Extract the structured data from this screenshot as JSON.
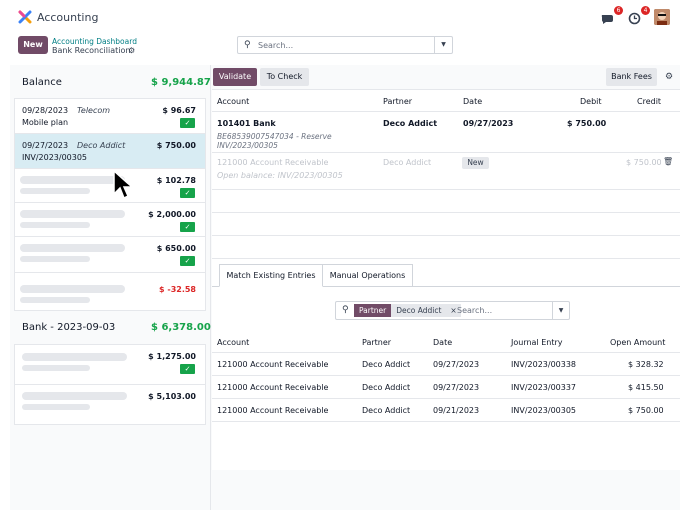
{
  "app": {
    "name": "Accounting"
  },
  "topbar": {
    "chat_badge": "6",
    "activity_badge": "4"
  },
  "control_panel": {
    "new_label": "New",
    "breadcrumb_link": "Accounting Dashboard",
    "breadcrumb_current": "Bank Reconciliation",
    "search_placeholder": "Search..."
  },
  "sidebar": {
    "balance_label": "Balance",
    "balance_amount": "$ 9,944.87",
    "transactions": [
      {
        "date": "09/28/2023",
        "partner": "Telecom",
        "label": "Mobile plan",
        "amount": "$ 96.67",
        "checked": true
      },
      {
        "date": "09/27/2023",
        "partner": "Deco Addict",
        "label": "INV/2023/00305",
        "amount": "$ 750.00",
        "checked": false
      },
      {
        "amount": "$ 102.78",
        "checked": true
      },
      {
        "amount": "$ 2,000.00",
        "checked": true
      },
      {
        "amount": "$ 650.00",
        "checked": true
      },
      {
        "amount": "$ -32.58",
        "checked": false
      }
    ],
    "bank_label": "Bank - 2023-09-03",
    "bank_amount": "$ 6,378.00",
    "bank_transactions": [
      {
        "amount": "$ 1,275.00",
        "checked": true
      },
      {
        "amount": "$ 5,103.00",
        "checked": false
      }
    ]
  },
  "toolbar": {
    "validate": "Validate",
    "to_check": "To Check",
    "bank_fees": "Bank Fees"
  },
  "entries_table": {
    "headers": {
      "account": "Account",
      "partner": "Partner",
      "date": "Date",
      "debit": "Debit",
      "credit": "Credit"
    },
    "bank_line": {
      "account": "101401 Bank",
      "ref1": "BE68539007547034 - Reserve",
      "ref2": "INV/2023/00305",
      "partner": "Deco Addict",
      "date": "09/27/2023",
      "debit": "$ 750.00"
    },
    "open_line": {
      "account": "121000 Account Receivable",
      "note": "Open balance: INV/2023/00305",
      "partner": "Deco Addict",
      "tag": "New",
      "credit": "$ 750.00"
    }
  },
  "tabs": {
    "match": "Match Existing Entries",
    "manual": "Manual Operations"
  },
  "filter": {
    "facet_key": "Partner",
    "facet_value": "Deco Addict",
    "facet_remove": "×",
    "placeholder": "Search..."
  },
  "match_table": {
    "headers": {
      "account": "Account",
      "partner": "Partner",
      "date": "Date",
      "journal_entry": "Journal Entry",
      "open_amount": "Open Amount"
    },
    "rows": [
      {
        "account": "121000 Account Receivable",
        "partner": "Deco Addict",
        "date": "09/27/2023",
        "entry": "INV/2023/00338",
        "amount": "$ 328.32"
      },
      {
        "account": "121000 Account Receivable",
        "partner": "Deco Addict",
        "date": "09/27/2023",
        "entry": "INV/2023/00337",
        "amount": "$ 415.50"
      },
      {
        "account": "121000 Account Receivable",
        "partner": "Deco Addict",
        "date": "09/21/2023",
        "entry": "INV/2023/00305",
        "amount": "$ 750.00"
      }
    ]
  },
  "colors": {
    "brand": "#714b67",
    "accent_teal": "#017e84",
    "positive": "#16a34a",
    "negative": "#dc2626",
    "selected_row": "#d8ecf3"
  },
  "icons": [
    "app-logo-icon",
    "chat-icon",
    "clock-icon",
    "gear-icon",
    "search-icon",
    "caret-down-icon",
    "check-icon",
    "trash-icon",
    "mouse-cursor-icon"
  ]
}
